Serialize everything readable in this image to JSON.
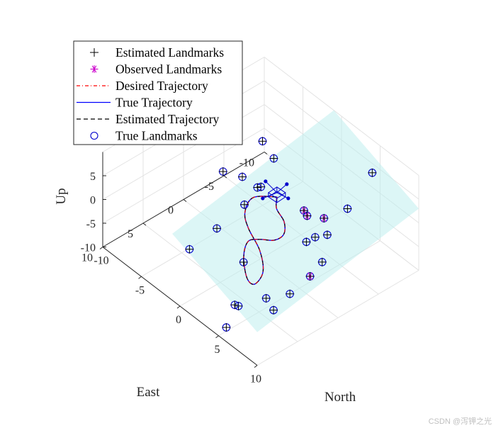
{
  "chart_data": {
    "type": "scatter",
    "xlabel": "North",
    "ylabel": "East",
    "zlabel": "Up",
    "xlim": [
      -10,
      10
    ],
    "ylim": [
      -10,
      10
    ],
    "zlim": [
      -10,
      10
    ],
    "x_ticks": [
      "-10",
      "-5",
      "0",
      "5",
      "10"
    ],
    "y_ticks": [
      "-10",
      "-5",
      "0",
      "5",
      "10"
    ],
    "z_ticks": [
      "-10",
      "-5",
      "0",
      "5"
    ],
    "grid": true,
    "legend_placement": "top-left",
    "legend": [
      {
        "name": "Estimated Landmarks",
        "marker": "+",
        "color": "#000000"
      },
      {
        "name": "Observed Landmarks",
        "marker": "*",
        "color": "#cc00cc"
      },
      {
        "name": "Desired Trajectory",
        "line": "dashdot",
        "color": "#ff0000"
      },
      {
        "name": "True Trajectory",
        "line": "solid",
        "color": "#0000ff"
      },
      {
        "name": "Estimated Trajectory",
        "line": "dashed",
        "color": "#000000"
      },
      {
        "name": "True Landmarks",
        "marker": "o",
        "color": "#0000cc"
      }
    ],
    "landmarks": [
      {
        "x": 4.5,
        "y": -9.5,
        "z": 4.2,
        "observed": false
      },
      {
        "x": 6,
        "y": -5,
        "z": 3,
        "observed": false
      },
      {
        "x": 0.5,
        "y": 2.5,
        "z": 4.5,
        "observed": false
      },
      {
        "x": 3.5,
        "y": -2,
        "z": 2.5,
        "observed": true
      },
      {
        "x": 6,
        "y": 0,
        "z": 6.5,
        "observed": true
      },
      {
        "x": 8,
        "y": 2,
        "z": 5.5,
        "observed": false
      },
      {
        "x": 6,
        "y": -1,
        "z": 1,
        "observed": false
      },
      {
        "x": 6,
        "y": -2.5,
        "z": 0,
        "observed": false
      },
      {
        "x": 9,
        "y": 1,
        "z": 1.5,
        "observed": false
      },
      {
        "x": 9,
        "y": 2.5,
        "z": 0,
        "observed": true
      },
      {
        "x": 4,
        "y": -4,
        "z": -0.5,
        "observed": true
      },
      {
        "x": 9,
        "y": 5,
        "z": -1.2,
        "observed": false
      },
      {
        "x": 7.5,
        "y": 6.5,
        "z": -2.5,
        "observed": false
      },
      {
        "x": 9.5,
        "y": 7.5,
        "z": -1.5,
        "observed": false
      },
      {
        "x": 6,
        "y": 8.5,
        "z": -4,
        "observed": false
      },
      {
        "x": 5,
        "y": 8,
        "z": -5.5,
        "observed": false
      },
      {
        "x": 6,
        "y": 10,
        "z": -7,
        "observed": false
      },
      {
        "x": 3,
        "y": 5,
        "z": -2,
        "observed": false
      },
      {
        "x": -0.5,
        "y": -0.5,
        "z": 4,
        "observed": false
      },
      {
        "x": -2.5,
        "y": -4,
        "z": 4,
        "observed": false
      },
      {
        "x": -2,
        "y": -1.5,
        "z": 1,
        "observed": false
      },
      {
        "x": -5,
        "y": -5,
        "z": 3.5,
        "observed": false
      },
      {
        "x": -5,
        "y": -2.5,
        "z": -1.5,
        "observed": false
      },
      {
        "x": -7.5,
        "y": -2.5,
        "z": -3.5,
        "observed": false
      },
      {
        "x": -4,
        "y": 5,
        "z": -8,
        "observed": false
      },
      {
        "x": -1.5,
        "y": 4,
        "z": -1.5,
        "observed": false
      }
    ],
    "trajectory": [
      {
        "x": 0,
        "y": -2,
        "z": 1
      },
      {
        "x": 1,
        "y": -1,
        "z": 0.8
      },
      {
        "x": 2.5,
        "y": -0.5,
        "z": 0.4
      },
      {
        "x": 3.5,
        "y": 0.5,
        "z": 0
      },
      {
        "x": 3.3,
        "y": 1.5,
        "z": -0.5
      },
      {
        "x": 2.2,
        "y": 2.2,
        "z": -1
      },
      {
        "x": 1.5,
        "y": 3,
        "z": -1.5
      },
      {
        "x": 2.5,
        "y": 4.5,
        "z": -2
      },
      {
        "x": 4.5,
        "y": 6,
        "z": -2.5
      },
      {
        "x": 5.5,
        "y": 6,
        "z": -2.5
      },
      {
        "x": 5,
        "y": 4.5,
        "z": -2
      },
      {
        "x": 3,
        "y": 3,
        "z": -1.5
      },
      {
        "x": 0.5,
        "y": 2,
        "z": -1
      },
      {
        "x": -1,
        "y": 1,
        "z": -0.5
      },
      {
        "x": -1.5,
        "y": -0.5,
        "z": 0.5
      },
      {
        "x": 0,
        "y": -2,
        "z": 1
      }
    ],
    "quadrotor": {
      "x": 0,
      "y": -2,
      "z": 1
    }
  },
  "watermark": "CSDN @泻钾之光"
}
